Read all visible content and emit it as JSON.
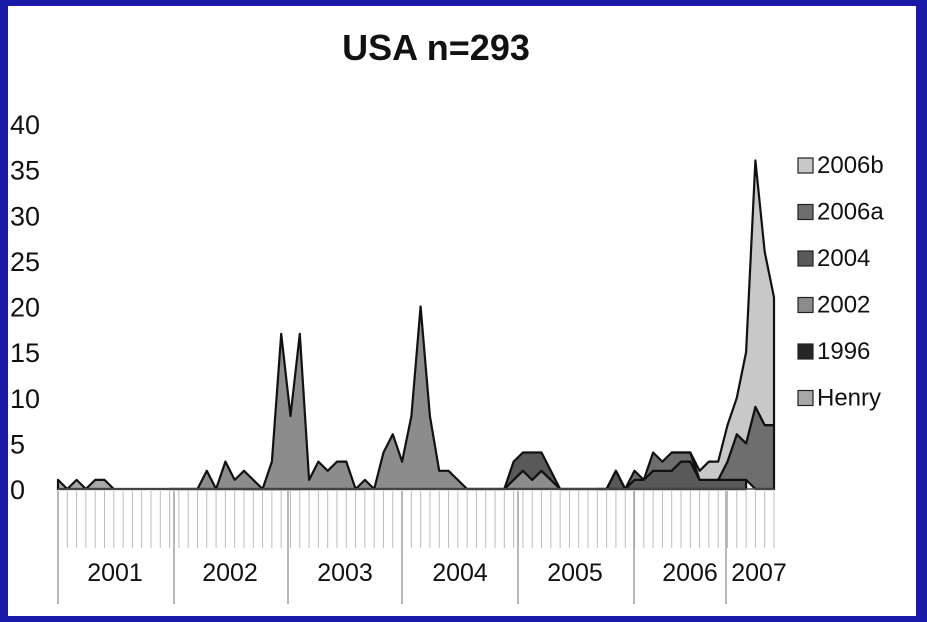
{
  "chart_data": {
    "type": "area",
    "title": "USA n=293",
    "xlabel": "",
    "ylabel": "",
    "ylim": [
      0,
      40
    ],
    "yticks": [
      "0",
      "5",
      "10",
      "15",
      "20",
      "25",
      "30",
      "35",
      "40"
    ],
    "year_labels": [
      "2001",
      "2002",
      "2003",
      "2004",
      "2005",
      "2006",
      "2007"
    ],
    "legend": [
      "2006b",
      "2006a",
      "2004",
      "2002",
      "1996",
      "Henry"
    ],
    "legend_position": "right",
    "grid": false,
    "colors": {
      "2006b": "#c8c8c8",
      "2006a": "#6e6e6e",
      "2004": "#595959",
      "2002": "#8c8c8c",
      "1996": "#262626",
      "Henry": "#a8a8a8"
    },
    "series": [
      {
        "name": "Henry",
        "points": [
          [
            0,
            1
          ],
          [
            1,
            0
          ],
          [
            2,
            1
          ],
          [
            3,
            0
          ],
          [
            4,
            1
          ],
          [
            5,
            1
          ],
          [
            6,
            0
          ],
          [
            7,
            0
          ],
          [
            8,
            0
          ],
          [
            9,
            0
          ],
          [
            10,
            0
          ],
          [
            11,
            0
          ],
          [
            12,
            0
          ],
          [
            13,
            0
          ],
          [
            14,
            0
          ],
          [
            15,
            0
          ],
          [
            16,
            0
          ],
          [
            17,
            0
          ],
          [
            18,
            0
          ],
          [
            19,
            0
          ],
          [
            20,
            0
          ],
          [
            21,
            0
          ],
          [
            22,
            0
          ],
          [
            23,
            0
          ],
          [
            24,
            0
          ],
          [
            25,
            0
          ],
          [
            26,
            0
          ]
        ]
      },
      {
        "name": "1996",
        "points": [
          [
            20,
            0
          ],
          [
            21,
            0
          ],
          [
            22,
            0
          ],
          [
            23,
            0
          ],
          [
            24,
            0
          ],
          [
            25,
            0
          ],
          [
            26,
            0
          ],
          [
            27,
            0
          ],
          [
            28,
            0
          ],
          [
            29,
            0
          ],
          [
            30,
            0
          ],
          [
            31,
            0
          ],
          [
            32,
            0
          ],
          [
            33,
            0
          ]
        ]
      },
      {
        "name": "2002",
        "points": [
          [
            12,
            0
          ],
          [
            13,
            0
          ],
          [
            14,
            0
          ],
          [
            15,
            0
          ],
          [
            16,
            2
          ],
          [
            17,
            0
          ],
          [
            18,
            3
          ],
          [
            19,
            1
          ],
          [
            20,
            2
          ],
          [
            21,
            1
          ],
          [
            22,
            0
          ],
          [
            23,
            3
          ],
          [
            24,
            17
          ],
          [
            25,
            8
          ],
          [
            26,
            17
          ],
          [
            27,
            1
          ],
          [
            28,
            3
          ],
          [
            29,
            2
          ],
          [
            30,
            3
          ],
          [
            31,
            3
          ],
          [
            32,
            0
          ],
          [
            33,
            1
          ],
          [
            34,
            0
          ],
          [
            35,
            4
          ],
          [
            36,
            6
          ],
          [
            37,
            3
          ],
          [
            38,
            8
          ],
          [
            39,
            20
          ],
          [
            40,
            8
          ],
          [
            41,
            2
          ],
          [
            42,
            2
          ],
          [
            43,
            1
          ],
          [
            44,
            0
          ],
          [
            45,
            0
          ],
          [
            46,
            0
          ],
          [
            47,
            0
          ],
          [
            48,
            0
          ],
          [
            49,
            1
          ],
          [
            50,
            2
          ],
          [
            51,
            1
          ],
          [
            52,
            2
          ],
          [
            53,
            1
          ],
          [
            54,
            0
          ],
          [
            55,
            0
          ],
          [
            56,
            0
          ],
          [
            57,
            0
          ],
          [
            58,
            0
          ],
          [
            59,
            0
          ],
          [
            60,
            0
          ],
          [
            61,
            0
          ],
          [
            62,
            0
          ],
          [
            63,
            0
          ],
          [
            64,
            0
          ],
          [
            65,
            0
          ],
          [
            66,
            0
          ],
          [
            67,
            0
          ],
          [
            68,
            0
          ],
          [
            69,
            0
          ],
          [
            70,
            0
          ],
          [
            71,
            0
          ],
          [
            72,
            0
          ],
          [
            73,
            0
          ],
          [
            74,
            0
          ]
        ]
      },
      {
        "name": "2004",
        "points": [
          [
            44,
            0
          ],
          [
            45,
            0
          ],
          [
            46,
            0
          ],
          [
            47,
            0
          ],
          [
            48,
            0
          ],
          [
            49,
            2
          ],
          [
            50,
            2
          ],
          [
            51,
            3
          ],
          [
            52,
            2
          ],
          [
            53,
            1
          ],
          [
            54,
            0
          ],
          [
            55,
            0
          ],
          [
            56,
            0
          ],
          [
            57,
            0
          ],
          [
            58,
            0
          ],
          [
            59,
            0
          ],
          [
            60,
            2
          ],
          [
            61,
            0
          ],
          [
            62,
            1
          ],
          [
            63,
            1
          ],
          [
            64,
            2
          ],
          [
            65,
            2
          ],
          [
            66,
            2
          ],
          [
            67,
            3
          ],
          [
            68,
            3
          ],
          [
            69,
            1
          ],
          [
            70,
            1
          ],
          [
            71,
            1
          ],
          [
            72,
            1
          ],
          [
            73,
            1
          ],
          [
            74,
            1
          ]
        ]
      },
      {
        "name": "2006a",
        "points": [
          [
            58,
            0
          ],
          [
            59,
            0
          ],
          [
            60,
            0
          ],
          [
            61,
            0
          ],
          [
            62,
            1
          ],
          [
            63,
            0
          ],
          [
            64,
            2
          ],
          [
            65,
            1
          ],
          [
            66,
            2
          ],
          [
            67,
            1
          ],
          [
            68,
            1
          ],
          [
            69,
            0
          ],
          [
            70,
            0
          ],
          [
            71,
            0
          ],
          [
            72,
            2
          ],
          [
            73,
            5
          ],
          [
            74,
            4
          ],
          [
            75,
            9
          ],
          [
            76,
            7
          ],
          [
            77,
            7
          ]
        ]
      },
      {
        "name": "2006b",
        "points": [
          [
            66,
            0
          ],
          [
            67,
            0
          ],
          [
            68,
            0
          ],
          [
            69,
            1
          ],
          [
            70,
            2
          ],
          [
            71,
            2
          ],
          [
            72,
            4
          ],
          [
            73,
            4
          ],
          [
            74,
            10
          ],
          [
            75,
            27
          ],
          [
            76,
            19
          ],
          [
            77,
            14
          ]
        ]
      }
    ]
  }
}
